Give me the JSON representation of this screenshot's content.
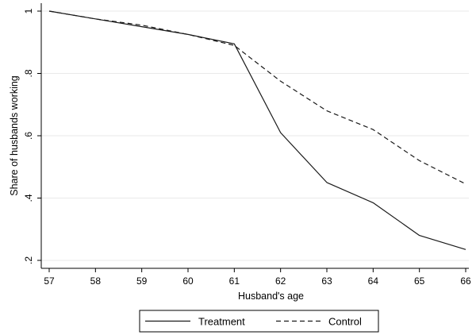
{
  "chart_data": {
    "type": "line",
    "xlabel": "Husband's age",
    "ylabel": "Share of husbands working",
    "x": [
      57,
      58,
      59,
      60,
      61,
      62,
      63,
      64,
      65,
      66
    ],
    "x_tick_labels": [
      "57",
      "58",
      "59",
      "60",
      "61",
      "62",
      "63",
      "64",
      "65",
      "66"
    ],
    "y_ticks": [
      0.2,
      0.4,
      0.6,
      0.8,
      1.0
    ],
    "y_tick_labels": [
      ".2",
      ".4",
      ".6",
      ".8",
      "1"
    ],
    "xlim": [
      57,
      66
    ],
    "ylim": [
      0.2,
      1.0
    ],
    "grid": "horizontal",
    "legend_position": "bottom",
    "series": [
      {
        "name": "Treatment",
        "style": "solid",
        "color": "#1a1a1a",
        "values": [
          1.0,
          0.975,
          0.95,
          0.925,
          0.895,
          0.61,
          0.45,
          0.385,
          0.28,
          0.235
        ]
      },
      {
        "name": "Control",
        "style": "dashed",
        "color": "#1a1a1a",
        "values": [
          1.0,
          0.975,
          0.955,
          0.925,
          0.89,
          0.775,
          0.68,
          0.62,
          0.52,
          0.445
        ]
      }
    ]
  }
}
